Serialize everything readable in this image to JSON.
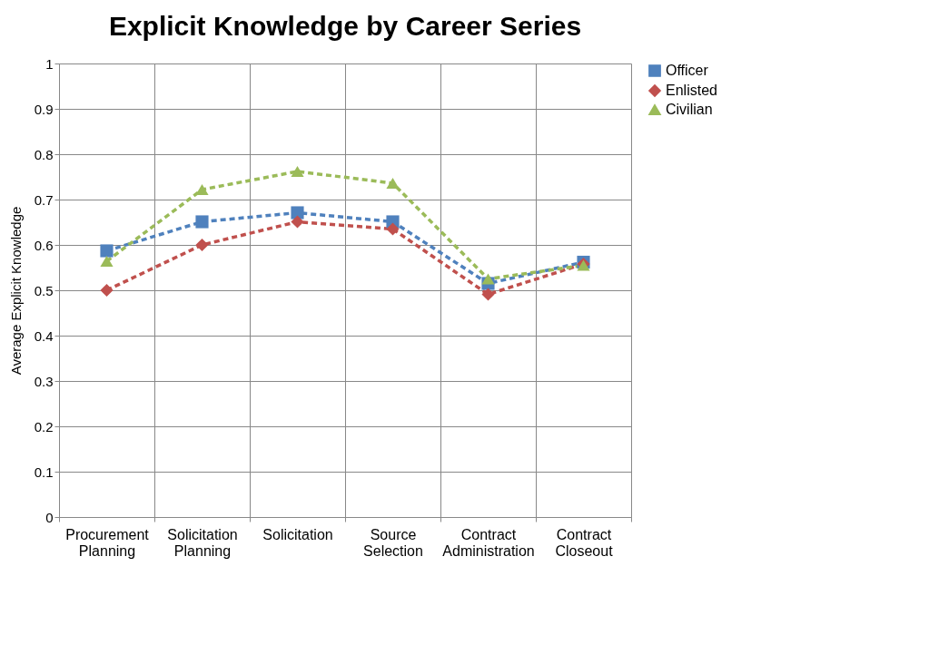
{
  "chart_data": {
    "type": "line",
    "title": "Explicit Knowledge by Career Series",
    "ylabel": "Average Explicit Knowledge",
    "categories": [
      "Procurement Planning",
      "Solicitation Planning",
      "Solicitation",
      "Source Selection",
      "Contract Administration",
      "Contract Closeout"
    ],
    "series": [
      {
        "name": "Officer",
        "color": "#4f81bd",
        "marker": "square",
        "values": [
          0.587,
          0.651,
          0.671,
          0.651,
          0.515,
          0.562
        ]
      },
      {
        "name": "Enlisted",
        "color": "#c0504d",
        "marker": "diamond",
        "values": [
          0.5,
          0.6,
          0.651,
          0.635,
          0.491,
          0.558
        ]
      },
      {
        "name": "Civilian",
        "color": "#9bbb59",
        "marker": "triangle",
        "values": [
          0.564,
          0.722,
          0.762,
          0.736,
          0.525,
          0.555
        ]
      }
    ],
    "ylim": [
      0,
      1
    ],
    "yticks": [
      0,
      0.1,
      0.2,
      0.3,
      0.4,
      0.5,
      0.6,
      0.7,
      0.8,
      0.9,
      1
    ],
    "grid": true,
    "legend": "right",
    "line_style": "dashed"
  }
}
